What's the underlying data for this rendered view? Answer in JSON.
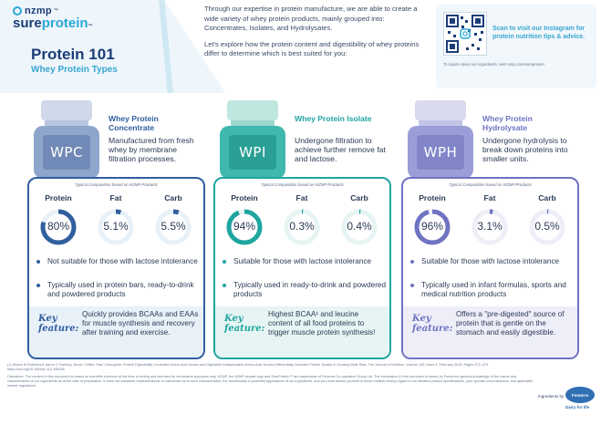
{
  "brand": {
    "top": "nzmp",
    "tm": "™",
    "sure": "sure",
    "protein": "protein",
    "tm2": "™"
  },
  "title": "Protein 101",
  "subtitle": "Whey Protein Types",
  "intro": [
    "Through our expertise in protein manufacture, we are able to create a wide variety of whey protein products, mainly grouped into: Concentrates, Isolates, and Hydrolysates.",
    "Let's explore how the protein content and digestibility of whey proteins differ to determine which is best suited for you:"
  ],
  "qr": {
    "text": "Scan to visit our Instagram for protein nutrition tips & advice.",
    "small": "To inquire about our ingredients, visit nzmp.com/sureprotein"
  },
  "composition_caption": "Typical Composition based on NZMP Products",
  "metric_labels": {
    "protein": "Protein",
    "fat": "Fat",
    "carb": "Carb"
  },
  "key_label": "Key feature:",
  "columns": [
    {
      "jar": "WPC",
      "title": "Whey Protein Concentrate",
      "desc": "Manufactured from fresh whey by membrane filtration processes.",
      "protein": "80%",
      "fat": "5.1%",
      "carb": "5.5%",
      "protein_frac": 0.8,
      "fat_frac": 0.051,
      "carb_frac": 0.055,
      "bullet1": "Not suitable for those with lactose intolerance",
      "bullet2": "Typically used in protein bars, ready-to-drink and powdered products",
      "key": "Quickly provides BCAAs and EAAs for muscle synthesis and recovery after training and exercise.",
      "accent": "#2f5f9e",
      "light": "#e8f0f8",
      "jar_lid": "#cfd9ea",
      "jar_body": "#8fa6cc"
    },
    {
      "jar": "WPI",
      "title": "Whey Protein Isolate",
      "desc": "Undergone filtration to achieve further remove fat and lactose.",
      "protein": "94%",
      "fat": "0.3%",
      "carb": "0.4%",
      "protein_frac": 0.94,
      "fat_frac": 0.003,
      "carb_frac": 0.004,
      "bullet1": "Suitable for those with lactose intolerance",
      "bullet2": "Typically used in ready-to-drink and powdered products",
      "key": "Highest BCAA¹ and leucine content of all food proteins to trigger muscle protein synthesis!",
      "accent": "#1fa5a0",
      "light": "#e6f5f3",
      "jar_lid": "#bfe6df",
      "jar_body": "#3fb8ae"
    },
    {
      "jar": "WPH",
      "title": "Whey Protein Hydrolysate",
      "desc": "Undergone hydrolysis to break down proteins into smaller units.",
      "protein": "96%",
      "fat": "3.1%",
      "carb": "0.5%",
      "protein_frac": 0.96,
      "fat_frac": 0.031,
      "carb_frac": 0.005,
      "bullet1": "Suitable for those with lactose intolerance",
      "bullet2": "Typically used in infant formulas, sports and medical nutrition products",
      "key": "Offers a \"pre-digested\" source of protein that is gentle on the stomach and easily digestible.",
      "accent": "#6f73c2",
      "light": "#eeeef9",
      "jar_lid": "#d9daf0",
      "jar_body": "#9a9ed8"
    }
  ],
  "footer": [
    "(1) Shane M Rutherfurd, Aaron C Fanning, Bruce J Miller, Paul J Moughan, Protein Digestibility-Corrected Amino Acid Scores and Digestible Indispensable Amino Acid Scores Differentially Describe Protein Quality in Growing Male Rats, The Journal of Nutrition, Volume 145, Issue 2, February 2015, Pages 372–379, https://doi.org/10.3945/jn.114.195438",
    "Disclaimer: The content in this document is based on scientific evidence at the time of writing and intended for informative purposes only. NZMP, the NZMP droplet logo and SureProtein™ are trademarks of Fonterra Co-operative Group Ltd. The information in this document is based on Fonterra's general knowledge of the nature and characteristics of our ingredients as at the date of preparation. It does not constitute representations or warranties as to such characteristics, the functionality or potential applications of our ingredients, and you must assure yourself of these matters having regard to our detailed product specifications, your specific circumstances, and applicable market regulations."
  ],
  "ingredients_by": "Ingredients by",
  "fonterra": "Fonterra",
  "dairy": "Dairy for life"
}
